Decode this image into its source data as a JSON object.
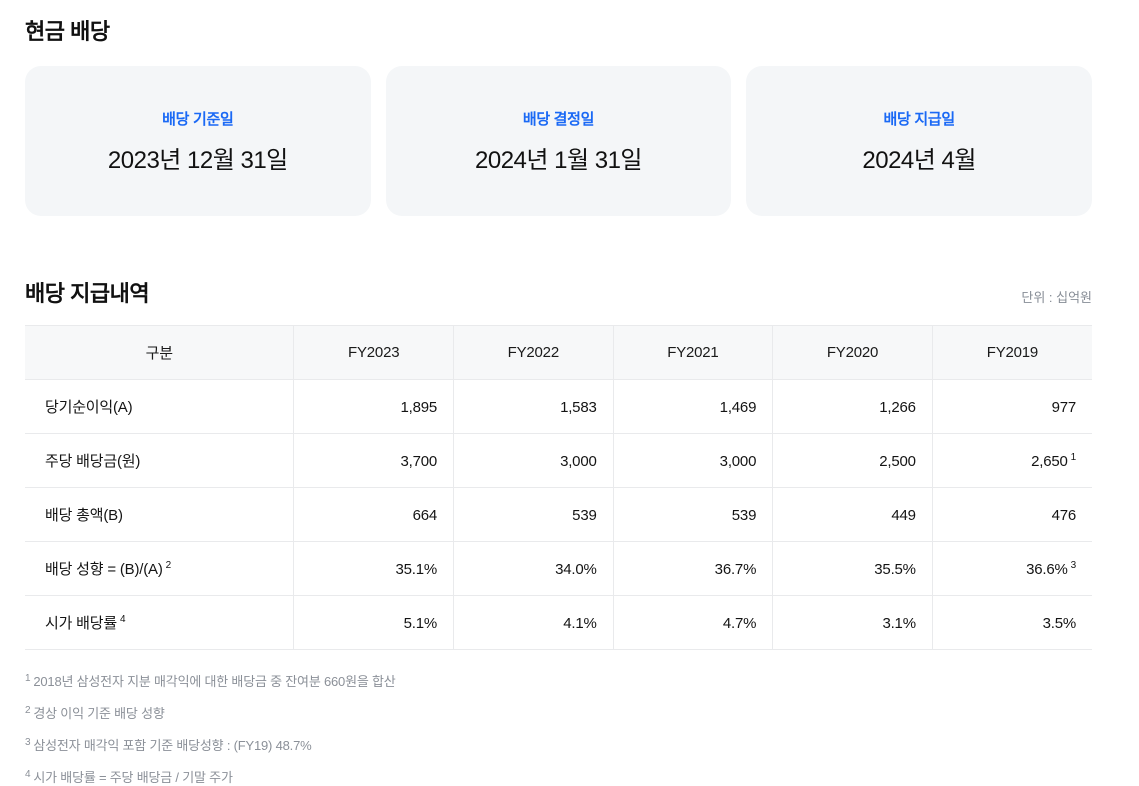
{
  "page": {
    "section1_title": "현금 배당",
    "section2_title": "배당 지급내역",
    "unit_label": "단위 : 십억원"
  },
  "colors": {
    "accent_blue": "#1a69f5",
    "card_background": "#f4f6f8",
    "table_header_background": "#f7f8f9",
    "border": "#e9eaec",
    "footnote_gray": "#8b9098"
  },
  "cards": [
    {
      "label": "배당 기준일",
      "value": "2023년 12월 31일"
    },
    {
      "label": "배당 결정일",
      "value": "2024년 1월 31일"
    },
    {
      "label": "배당 지급일",
      "value": "2024년 4월"
    }
  ],
  "table": {
    "headers": [
      "구분",
      "FY2023",
      "FY2022",
      "FY2021",
      "FY2020",
      "FY2019"
    ],
    "rows": [
      {
        "label": "당기순이익(A)",
        "values": [
          {
            "text": "1,895"
          },
          {
            "text": "1,583"
          },
          {
            "text": "1,469"
          },
          {
            "text": "1,266"
          },
          {
            "text": "977"
          }
        ]
      },
      {
        "label": "주당 배당금(원)",
        "values": [
          {
            "text": "3,700"
          },
          {
            "text": "3,000"
          },
          {
            "text": "3,000"
          },
          {
            "text": "2,500"
          },
          {
            "text": "2,650",
            "sup": "1"
          }
        ]
      },
      {
        "label": "배당 총액(B)",
        "values": [
          {
            "text": "664"
          },
          {
            "text": "539"
          },
          {
            "text": "539"
          },
          {
            "text": "449"
          },
          {
            "text": "476"
          }
        ]
      },
      {
        "label": "배당 성향 = (B)/(A)",
        "label_sup": "2",
        "values": [
          {
            "text": "35.1%"
          },
          {
            "text": "34.0%"
          },
          {
            "text": "36.7%"
          },
          {
            "text": "35.5%"
          },
          {
            "text": "36.6%",
            "sup": "3"
          }
        ]
      },
      {
        "label": "시가 배당률",
        "label_sup": "4",
        "values": [
          {
            "text": "5.1%"
          },
          {
            "text": "4.1%"
          },
          {
            "text": "4.7%"
          },
          {
            "text": "3.1%"
          },
          {
            "text": "3.5%"
          }
        ]
      }
    ]
  },
  "footnotes": [
    {
      "sup": "1",
      "text": "2018년 삼성전자 지분 매각익에 대한 배당금 중 잔여분 660원을 합산"
    },
    {
      "sup": "2",
      "text": "경상 이익 기준 배당 성향"
    },
    {
      "sup": "3",
      "text": "삼성전자 매각익 포함 기준 배당성향 : (FY19) 48.7%"
    },
    {
      "sup": "4",
      "text": "시가 배당률 = 주당 배당금 / 기말 주가"
    }
  ]
}
